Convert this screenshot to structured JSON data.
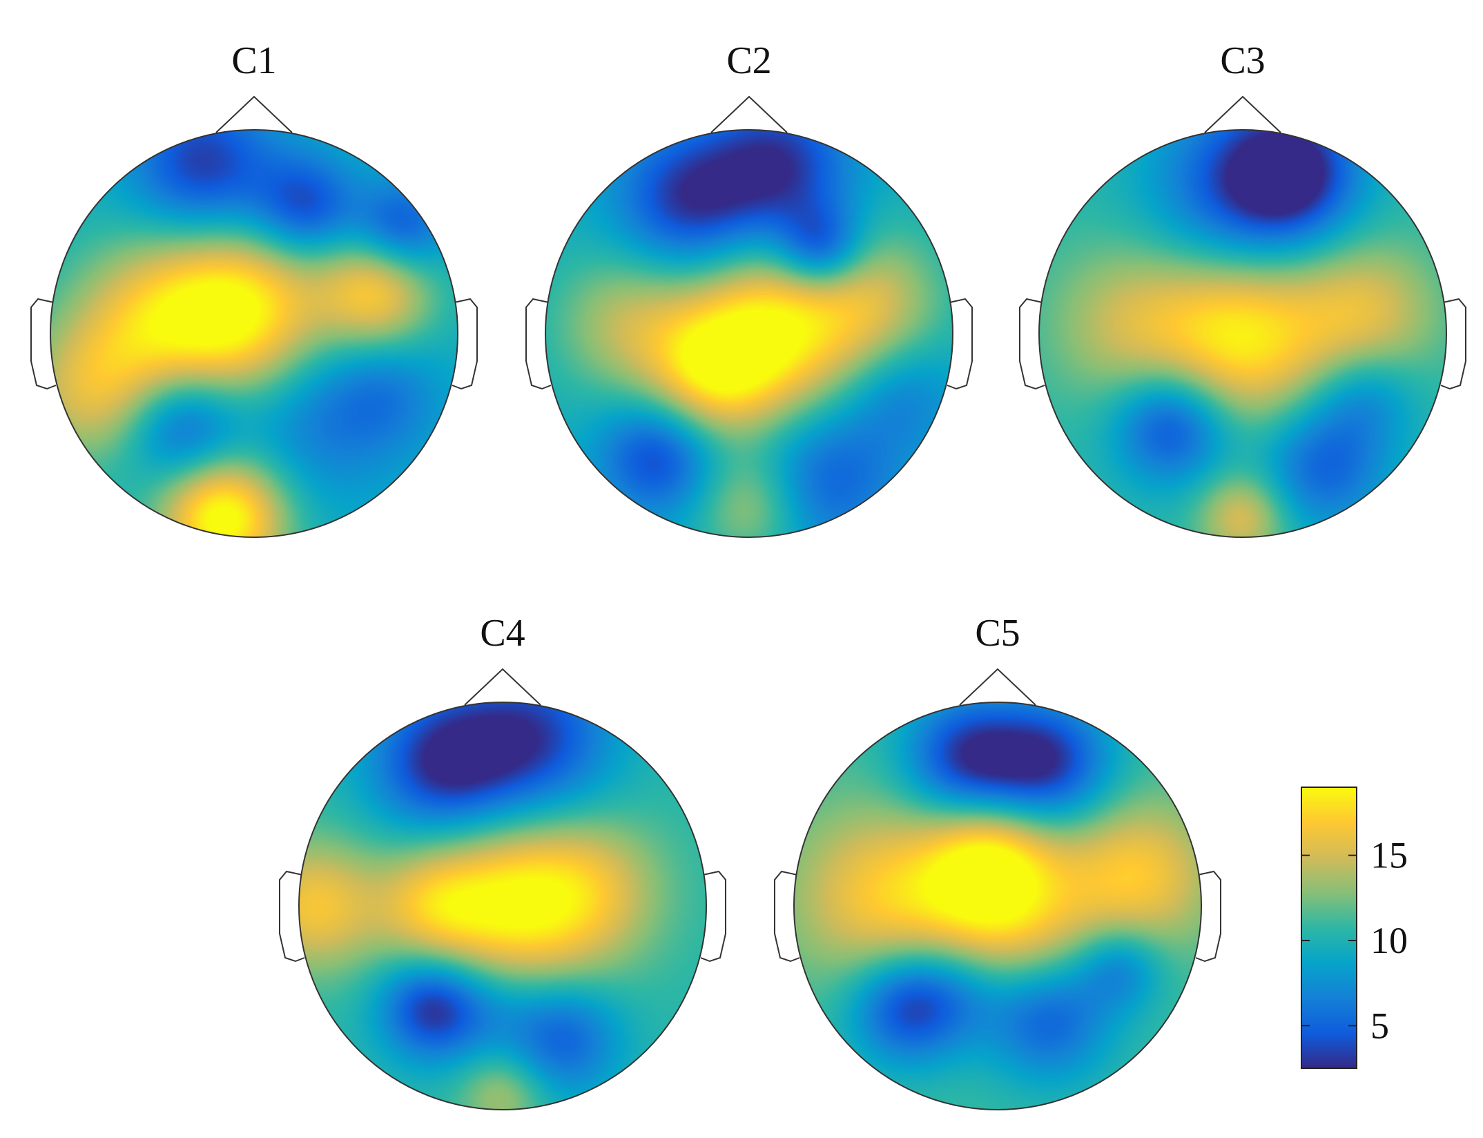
{
  "chart_data": {
    "type": "heatmap",
    "kind": "scalp topographic maps",
    "colormap": "parula",
    "colors": [
      "#352a87",
      "#0f5cdd",
      "#1481d6",
      "#06a4ca",
      "#2eb7a4",
      "#87bf77",
      "#d1bb59",
      "#fec832",
      "#f9fb0e"
    ],
    "colorbar": {
      "range": [
        2.5,
        19
      ],
      "ticks": [
        5,
        10,
        15
      ],
      "tick_labels": [
        "5",
        "10",
        "15"
      ],
      "placement": "bottom-right"
    },
    "maps": [
      {
        "title": "C1",
        "baseline": 9.5,
        "sources": [
          {
            "x": -0.05,
            "y": 0.1,
            "v": 18.5,
            "s": 0.3
          },
          {
            "x": -0.5,
            "y": 0.05,
            "v": 15.5,
            "s": 0.3
          },
          {
            "x": 0.6,
            "y": 0.2,
            "v": 16.5,
            "s": 0.2
          },
          {
            "x": -0.15,
            "y": -0.9,
            "v": 20,
            "s": 0.22
          },
          {
            "x": -0.8,
            "y": -0.3,
            "v": 14.5,
            "s": 0.25
          },
          {
            "x": -0.25,
            "y": 0.82,
            "v": 3,
            "s": 0.25
          },
          {
            "x": 0.25,
            "y": 0.62,
            "v": 3.5,
            "s": 0.18
          },
          {
            "x": 0.72,
            "y": 0.52,
            "v": 4,
            "s": 0.16
          },
          {
            "x": -0.35,
            "y": -0.45,
            "v": 3.5,
            "s": 0.2
          },
          {
            "x": 0.3,
            "y": -0.4,
            "v": 6,
            "s": 0.3
          },
          {
            "x": 0.65,
            "y": -0.3,
            "v": 7,
            "s": 0.2
          }
        ]
      },
      {
        "title": "C2",
        "baseline": 9.5,
        "sources": [
          {
            "x": 0.1,
            "y": 0.0,
            "v": 18.5,
            "s": 0.3
          },
          {
            "x": -0.2,
            "y": -0.2,
            "v": 15.5,
            "s": 0.22
          },
          {
            "x": 0.6,
            "y": 0.15,
            "v": 14.5,
            "s": 0.25
          },
          {
            "x": -0.6,
            "y": 0.05,
            "v": 14,
            "s": 0.25
          },
          {
            "x": 0.0,
            "y": -0.85,
            "v": 13.5,
            "s": 0.18
          },
          {
            "x": -0.3,
            "y": 0.65,
            "v": 3,
            "s": 0.25
          },
          {
            "x": 0.15,
            "y": 0.82,
            "v": 3,
            "s": 0.25
          },
          {
            "x": 0.35,
            "y": 0.42,
            "v": 3,
            "s": 0.15
          },
          {
            "x": -0.45,
            "y": -0.6,
            "v": 3.5,
            "s": 0.2
          },
          {
            "x": 0.4,
            "y": -0.7,
            "v": 5,
            "s": 0.25
          },
          {
            "x": 0.75,
            "y": -0.3,
            "v": 6.5,
            "s": 0.2
          }
        ]
      },
      {
        "title": "C3",
        "baseline": 10.5,
        "sources": [
          {
            "x": 0.0,
            "y": 0.0,
            "v": 18.5,
            "s": 0.3
          },
          {
            "x": -0.55,
            "y": 0.05,
            "v": 14.5,
            "s": 0.28
          },
          {
            "x": 0.6,
            "y": 0.1,
            "v": 15.5,
            "s": 0.25
          },
          {
            "x": 0.0,
            "y": -0.9,
            "v": 15.5,
            "s": 0.15
          },
          {
            "x": 0.0,
            "y": 0.7,
            "v": 4,
            "s": 0.32
          },
          {
            "x": 0.25,
            "y": 0.8,
            "v": 4,
            "s": 0.22
          },
          {
            "x": -0.35,
            "y": -0.45,
            "v": 3.5,
            "s": 0.2
          },
          {
            "x": 0.4,
            "y": -0.65,
            "v": 5,
            "s": 0.22
          },
          {
            "x": 0.6,
            "y": -0.3,
            "v": 7,
            "s": 0.18
          }
        ]
      },
      {
        "title": "C4",
        "baseline": 10.5,
        "sources": [
          {
            "x": 0.05,
            "y": 0.0,
            "v": 18.5,
            "s": 0.3
          },
          {
            "x": 0.45,
            "y": 0.08,
            "v": 14.5,
            "s": 0.25
          },
          {
            "x": -0.92,
            "y": 0.0,
            "v": 16.5,
            "s": 0.22
          },
          {
            "x": -0.35,
            "y": 0.0,
            "v": 15,
            "s": 0.2
          },
          {
            "x": 0.0,
            "y": -0.92,
            "v": 14,
            "s": 0.15
          },
          {
            "x": -0.3,
            "y": 0.7,
            "v": 3,
            "s": 0.25
          },
          {
            "x": 0.15,
            "y": 0.82,
            "v": 3.5,
            "s": 0.28
          },
          {
            "x": -0.35,
            "y": -0.5,
            "v": 3,
            "s": 0.18
          },
          {
            "x": 0.3,
            "y": -0.65,
            "v": 5,
            "s": 0.2
          },
          {
            "x": -0.05,
            "y": -0.5,
            "v": 8,
            "s": 0.2
          }
        ]
      },
      {
        "title": "C5",
        "baseline": 11,
        "sources": [
          {
            "x": 0.0,
            "y": 0.0,
            "v": 18.5,
            "s": 0.32
          },
          {
            "x": -0.6,
            "y": 0.05,
            "v": 16,
            "s": 0.3
          },
          {
            "x": 0.7,
            "y": 0.15,
            "v": 16.5,
            "s": 0.25
          },
          {
            "x": -0.05,
            "y": 0.25,
            "v": 15,
            "s": 0.2
          },
          {
            "x": -0.15,
            "y": 0.72,
            "v": 3,
            "s": 0.22
          },
          {
            "x": 0.25,
            "y": 0.7,
            "v": 3,
            "s": 0.22
          },
          {
            "x": -0.45,
            "y": -0.5,
            "v": 4,
            "s": 0.2
          },
          {
            "x": 0.25,
            "y": -0.55,
            "v": 4.5,
            "s": 0.22
          },
          {
            "x": 0.6,
            "y": -0.3,
            "v": 6.5,
            "s": 0.15
          },
          {
            "x": -0.2,
            "y": -0.4,
            "v": 7,
            "s": 0.2
          }
        ]
      }
    ]
  }
}
